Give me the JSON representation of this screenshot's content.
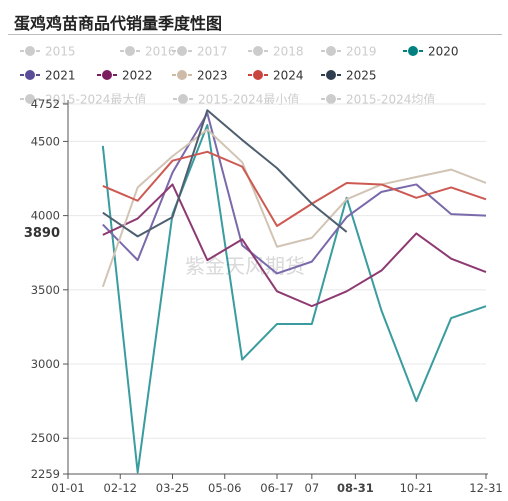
{
  "chart_data": {
    "type": "line",
    "title": "蛋鸡鸡苗商品代销量季度性图",
    "watermark": "紫金天风期货",
    "x_ticks": [
      "01-01",
      "02-12",
      "03-25",
      "05-06",
      "06-17",
      "07",
      "08-31",
      "10-21",
      "12-31"
    ],
    "x_highlight": "08-31",
    "y_ticks": [
      4752,
      4500,
      4000,
      3500,
      3000,
      2500,
      2259
    ],
    "y_highlight": "3890",
    "ylim": [
      2259,
      4752
    ],
    "x_index_range": [
      0,
      12
    ],
    "legend_position": "top",
    "legend": [
      {
        "name": "2015",
        "color": "#cccccc",
        "active": false
      },
      {
        "name": "2016",
        "color": "#cccccc",
        "active": false
      },
      {
        "name": "2017",
        "color": "#cccccc",
        "active": false
      },
      {
        "name": "2018",
        "color": "#cccccc",
        "active": false
      },
      {
        "name": "2019",
        "color": "#cccccc",
        "active": false
      },
      {
        "name": "2020",
        "color": "#008080",
        "active": true
      },
      {
        "name": "2021",
        "color": "#5c4b99",
        "active": true
      },
      {
        "name": "2022",
        "color": "#7b1c5e",
        "active": true
      },
      {
        "name": "2023",
        "color": "#cdbba8",
        "active": true
      },
      {
        "name": "2024",
        "color": "#c9453e",
        "active": true
      },
      {
        "name": "2025",
        "color": "#2e3e4e",
        "active": true
      },
      {
        "name": "2015-2024最大值",
        "color": "#cccccc",
        "active": false
      },
      {
        "name": "2015-2024最小值",
        "color": "#cccccc",
        "active": false
      },
      {
        "name": "2015-2024均值",
        "color": "#cccccc",
        "active": false
      }
    ],
    "series": [
      {
        "name": "2020",
        "color": "#3a9c9e",
        "x": [
          1,
          2,
          3,
          4,
          5,
          6,
          7,
          8,
          9,
          10,
          11,
          12
        ],
        "values": [
          4470,
          2270,
          4010,
          4610,
          3030,
          3270,
          3270,
          4120,
          3360,
          2750,
          3310,
          3390
        ]
      },
      {
        "name": "2021",
        "color": "#7a6aab",
        "x": [
          1,
          2,
          3,
          4,
          5,
          6,
          7,
          8,
          9,
          10,
          11,
          12
        ],
        "values": [
          3940,
          3700,
          4290,
          4690,
          3800,
          3610,
          3690,
          3990,
          4160,
          4210,
          4010,
          4000
        ]
      },
      {
        "name": "2022",
        "color": "#8e3a72",
        "x": [
          1,
          2,
          3,
          4,
          5,
          6,
          7,
          8,
          9,
          10,
          11,
          12
        ],
        "values": [
          3870,
          3980,
          4210,
          3700,
          3840,
          3490,
          3390,
          3490,
          3630,
          3880,
          3710,
          3620
        ]
      },
      {
        "name": "2023",
        "color": "#d2c4b4",
        "x": [
          1,
          2,
          3,
          4,
          5,
          6,
          7,
          8,
          9,
          10,
          11,
          12
        ],
        "values": [
          3520,
          4190,
          4400,
          4580,
          4360,
          3790,
          3850,
          4110,
          4210,
          4260,
          4310,
          4220
        ]
      },
      {
        "name": "2024",
        "color": "#cc5a52",
        "x": [
          1,
          2,
          3,
          4,
          5,
          6,
          7,
          8,
          9,
          10,
          11,
          12
        ],
        "values": [
          4200,
          4100,
          4370,
          4430,
          4330,
          3930,
          4080,
          4220,
          4210,
          4120,
          4190,
          4110
        ]
      },
      {
        "name": "2025",
        "color": "#4f5f6f",
        "x": [
          1,
          2,
          3,
          4,
          5,
          6,
          7,
          8
        ],
        "values": [
          4020,
          3860,
          3990,
          4710,
          4510,
          4320,
          4080,
          3890
        ]
      }
    ]
  }
}
